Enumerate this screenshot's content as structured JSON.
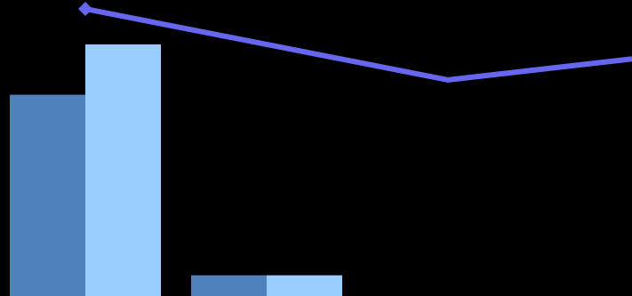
{
  "chart_data": {
    "type": "bar",
    "title": "",
    "xlabel": "",
    "ylabel": "",
    "grid": false,
    "legend": "none",
    "categories": [
      "",
      "",
      "",
      ""
    ],
    "ylim": [
      0,
      100
    ],
    "series": [
      {
        "type": "bar",
        "values": [
          68,
          7,
          null,
          null
        ],
        "color": "#4f81bd"
      },
      {
        "type": "bar",
        "values": [
          85,
          7,
          null,
          null
        ],
        "color": "#99ccff"
      },
      {
        "type": "line",
        "values": [
          97,
          85,
          73,
          80
        ],
        "color": "#6666ee",
        "marker": "diamond"
      }
    ]
  }
}
